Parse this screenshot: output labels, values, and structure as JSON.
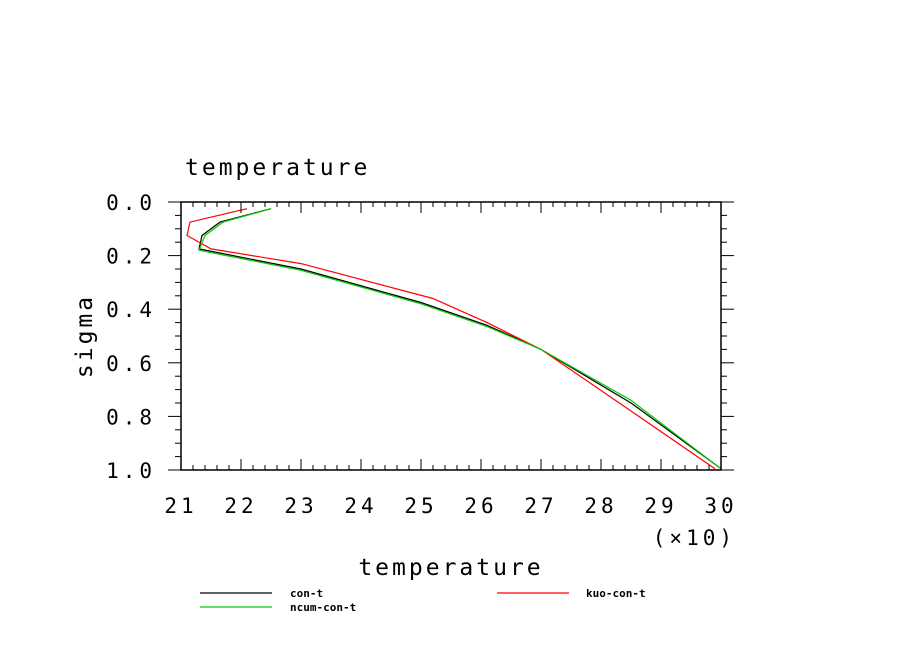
{
  "chart_data": {
    "type": "line",
    "title": "temperature",
    "xlabel": "temperature",
    "ylabel": "sigma",
    "x_multiplier_label": "(×10)",
    "xlim": [
      21,
      30
    ],
    "ylim": [
      0.0,
      1.0
    ],
    "y_inverted": true,
    "x_ticks": [
      21,
      22,
      23,
      24,
      25,
      26,
      27,
      28,
      29,
      30
    ],
    "y_ticks": [
      "0.0",
      "0.2",
      "0.4",
      "0.6",
      "0.8",
      "1.0"
    ],
    "y_tick_values": [
      0.0,
      0.2,
      0.4,
      0.6,
      0.8,
      1.0
    ],
    "grid": false,
    "legend_position": "bottom",
    "series": [
      {
        "name": "con-t",
        "color": "#000000",
        "points": [
          [
            22.5,
            0.025
          ],
          [
            21.65,
            0.075
          ],
          [
            21.35,
            0.125
          ],
          [
            21.3,
            0.175
          ],
          [
            23.0,
            0.25
          ],
          [
            25.0,
            0.375
          ],
          [
            26.1,
            0.46
          ],
          [
            27.0,
            0.55
          ],
          [
            28.5,
            0.75
          ],
          [
            30.0,
            0.995
          ]
        ]
      },
      {
        "name": "kuo-con-t",
        "color": "#ff0000",
        "points": [
          [
            22.1,
            0.025
          ],
          [
            21.15,
            0.075
          ],
          [
            21.1,
            0.125
          ],
          [
            21.5,
            0.175
          ],
          [
            23.0,
            0.23
          ],
          [
            25.2,
            0.36
          ],
          [
            26.1,
            0.45
          ],
          [
            27.0,
            0.55
          ],
          [
            28.5,
            0.78
          ],
          [
            29.9,
            0.995
          ]
        ]
      },
      {
        "name": "ncum-con-t",
        "color": "#00cc00",
        "points": [
          [
            22.5,
            0.025
          ],
          [
            21.7,
            0.075
          ],
          [
            21.4,
            0.125
          ],
          [
            21.3,
            0.18
          ],
          [
            23.0,
            0.255
          ],
          [
            25.0,
            0.38
          ],
          [
            26.1,
            0.465
          ],
          [
            27.0,
            0.55
          ],
          [
            28.5,
            0.74
          ],
          [
            30.0,
            0.995
          ]
        ]
      }
    ]
  }
}
